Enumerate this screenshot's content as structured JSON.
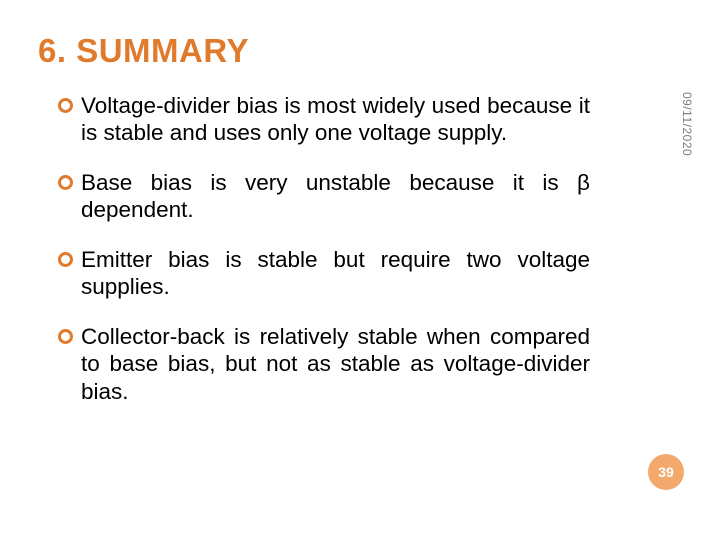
{
  "title": {
    "text": "6. SUMMARY",
    "color": "#e07b2e",
    "fontsize": 33,
    "fontweight": 700
  },
  "date": {
    "text": "09/11/2020",
    "color": "#7a7a7a",
    "fontsize": 12
  },
  "bullets": {
    "marker_color": "#e07b2e",
    "text_color": "#000000",
    "fontsize": 22.5,
    "items": [
      {
        "text": "Voltage-divider bias is most widely used because it is stable and uses only one voltage supply."
      },
      {
        "text": "Base bias is very unstable because it is β dependent."
      },
      {
        "text": "Emitter bias is stable but require two voltage supplies."
      },
      {
        "text": "Collector-back is relatively stable when compared to base bias, but not as stable as voltage-divider bias."
      }
    ]
  },
  "page_number": {
    "text": "39",
    "bg_color": "#f2a96b",
    "text_color": "#ffffff",
    "fontsize": 14
  },
  "background_color": "#ffffff"
}
